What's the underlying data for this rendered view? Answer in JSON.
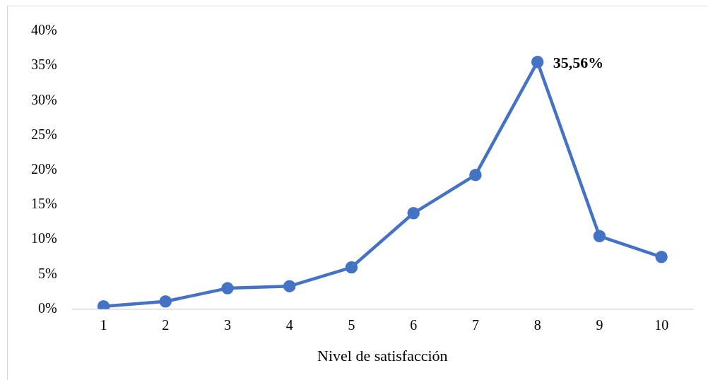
{
  "chart_data": {
    "type": "line",
    "xlabel": "Nivel de satisfacción",
    "categories": [
      "1",
      "2",
      "3",
      "4",
      "5",
      "6",
      "7",
      "8",
      "9",
      "10"
    ],
    "series": [
      {
        "color": "#4472c4",
        "values": [
          0.4,
          1.1,
          3.0,
          3.3,
          6.0,
          13.8,
          19.3,
          35.56,
          10.5,
          7.5
        ],
        "value_labels": [
          null,
          null,
          null,
          null,
          null,
          null,
          null,
          "35,56%",
          null,
          null
        ]
      }
    ],
    "ylim": [
      0,
      40
    ],
    "yticks": [
      {
        "value": 0,
        "label": "0%"
      },
      {
        "value": 5,
        "label": "5%"
      },
      {
        "value": 10,
        "label": "10%"
      },
      {
        "value": 15,
        "label": "15%"
      },
      {
        "value": 20,
        "label": "20%"
      },
      {
        "value": 25,
        "label": "25%"
      },
      {
        "value": 30,
        "label": "30%"
      },
      {
        "value": 35,
        "label": "35%"
      },
      {
        "value": 40,
        "label": "40%"
      }
    ],
    "grid": false,
    "legend": false,
    "marker": "circle",
    "line_style": "solid"
  }
}
